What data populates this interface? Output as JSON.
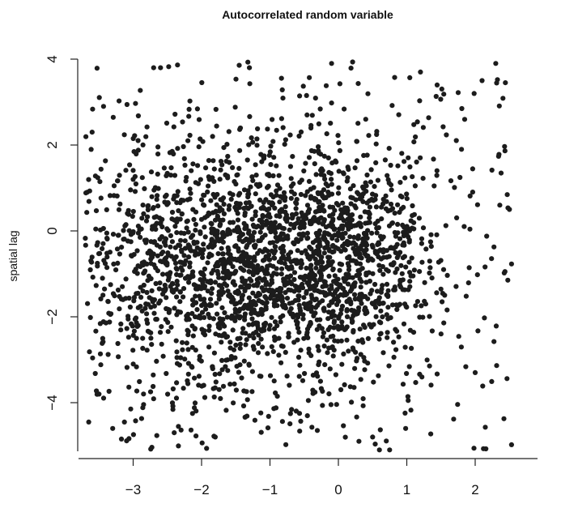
{
  "chart_data": {
    "type": "scatter",
    "title": "Autocorrelated random variable",
    "xlabel": "",
    "ylabel": "spatial lag",
    "xlim": [
      -3.8,
      2.6
    ],
    "ylim": [
      -5.2,
      4.1
    ],
    "xticks": [
      "−3",
      "−2",
      "−1",
      "0",
      "1",
      "2"
    ],
    "xtick_values": [
      -3,
      -2,
      -1,
      0,
      1,
      2
    ],
    "yticks": [
      "−4",
      "−2",
      "0",
      "2",
      "4"
    ],
    "ytick_values": [
      -4,
      -2,
      0,
      2,
      4
    ],
    "grid": false,
    "point_color": "#1c1c1c",
    "sample_points": {
      "x": [
        -3.6,
        -3.5,
        -3.3,
        -3.0,
        -2.7,
        -2.4,
        -2.2,
        -2.0,
        -1.8,
        -1.6,
        -1.3,
        -1.0,
        -0.7,
        -0.4,
        -0.1,
        0.0,
        0.2,
        0.4,
        0.6,
        0.9,
        1.2,
        1.5,
        1.8,
        2.1,
        2.3,
        2.5,
        -0.1,
        0.3,
        0.6,
        -1.4,
        -2.6,
        2.0,
        -1.2,
        0.5
      ],
      "y": [
        2.3,
        -3.8,
        -4.6,
        1.2,
        3.8,
        -4.7,
        2.1,
        -1.0,
        -4.8,
        0.5,
        3.8,
        -2.2,
        1.5,
        -0.8,
        3.9,
        0.6,
        -1.3,
        2.6,
        -5.1,
        -0.5,
        3.7,
        -2.4,
        1.9,
        3.5,
        3.9,
        0.5,
        -2.0,
        -4.9,
        -1.7,
        -0.9,
        3.8,
        -3.3,
        1.3,
        -4.8
      ]
    }
  }
}
